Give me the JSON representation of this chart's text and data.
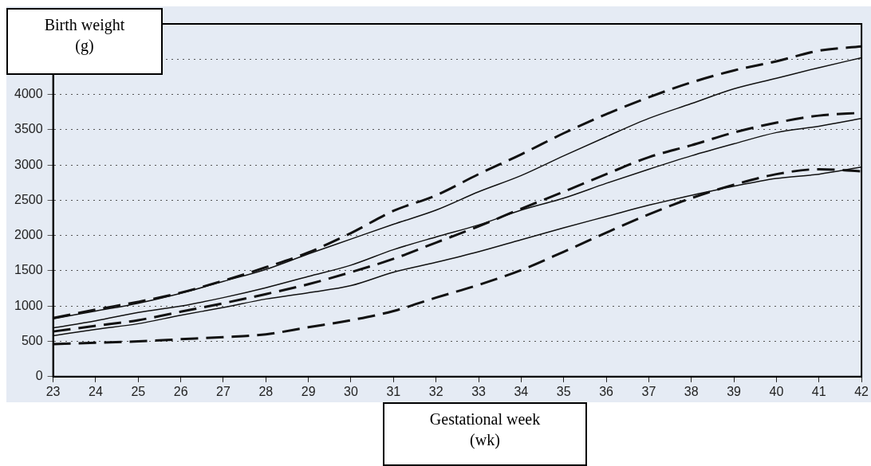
{
  "chart_data": {
    "type": "line",
    "xlabel": "Gestational week\n(wk)",
    "ylabel": "Birth weight\n(g)",
    "x": [
      23,
      24,
      25,
      26,
      27,
      28,
      29,
      30,
      31,
      32,
      33,
      34,
      35,
      36,
      37,
      38,
      39,
      40,
      41,
      42
    ],
    "xlim": [
      23,
      42
    ],
    "xticks": [
      23,
      24,
      25,
      26,
      27,
      28,
      29,
      30,
      31,
      32,
      33,
      34,
      35,
      36,
      37,
      38,
      39,
      40,
      41,
      42
    ],
    "ylim": [
      0,
      5000
    ],
    "yticks": [
      0,
      500,
      1000,
      1500,
      2000,
      2500,
      3000,
      3500,
      4000,
      {
        "value": 4500,
        "label": null
      }
    ],
    "grid": "y",
    "legend": false,
    "marker": "none",
    "series": [
      {
        "color": "#111111",
        "line_style": "dashed",
        "values": [
          830,
          950,
          1060,
          1190,
          1360,
          1550,
          1760,
          2035,
          2350,
          2570,
          2870,
          3150,
          3450,
          3720,
          3960,
          4170,
          4340,
          4470,
          4620,
          4680
        ]
      },
      {
        "color": "#111111",
        "line_style": "solid",
        "values": [
          820,
          930,
          1040,
          1180,
          1350,
          1520,
          1740,
          1950,
          2160,
          2360,
          2620,
          2850,
          3130,
          3400,
          3660,
          3870,
          4080,
          4230,
          4380,
          4520
        ]
      },
      {
        "color": "#111111",
        "line_style": "dashed",
        "values": [
          640,
          720,
          800,
          920,
          1040,
          1170,
          1310,
          1480,
          1670,
          1900,
          2130,
          2380,
          2620,
          2870,
          3110,
          3280,
          3460,
          3600,
          3700,
          3740
        ]
      },
      {
        "color": "#111111",
        "line_style": "solid",
        "values": [
          690,
          790,
          910,
          1000,
          1120,
          1260,
          1420,
          1580,
          1800,
          1980,
          2150,
          2360,
          2530,
          2740,
          2940,
          3130,
          3300,
          3460,
          3550,
          3660
        ]
      },
      {
        "color": "#111111",
        "line_style": "solid",
        "values": [
          580,
          670,
          750,
          870,
          980,
          1100,
          1190,
          1290,
          1480,
          1620,
          1770,
          1940,
          2110,
          2270,
          2430,
          2570,
          2700,
          2810,
          2870,
          2970
        ]
      },
      {
        "color": "#111111",
        "line_style": "dashed",
        "values": [
          460,
          480,
          500,
          530,
          560,
          600,
          700,
          800,
          930,
          1120,
          1300,
          1510,
          1770,
          2040,
          2300,
          2530,
          2720,
          2870,
          2940,
          2910
        ]
      }
    ]
  }
}
